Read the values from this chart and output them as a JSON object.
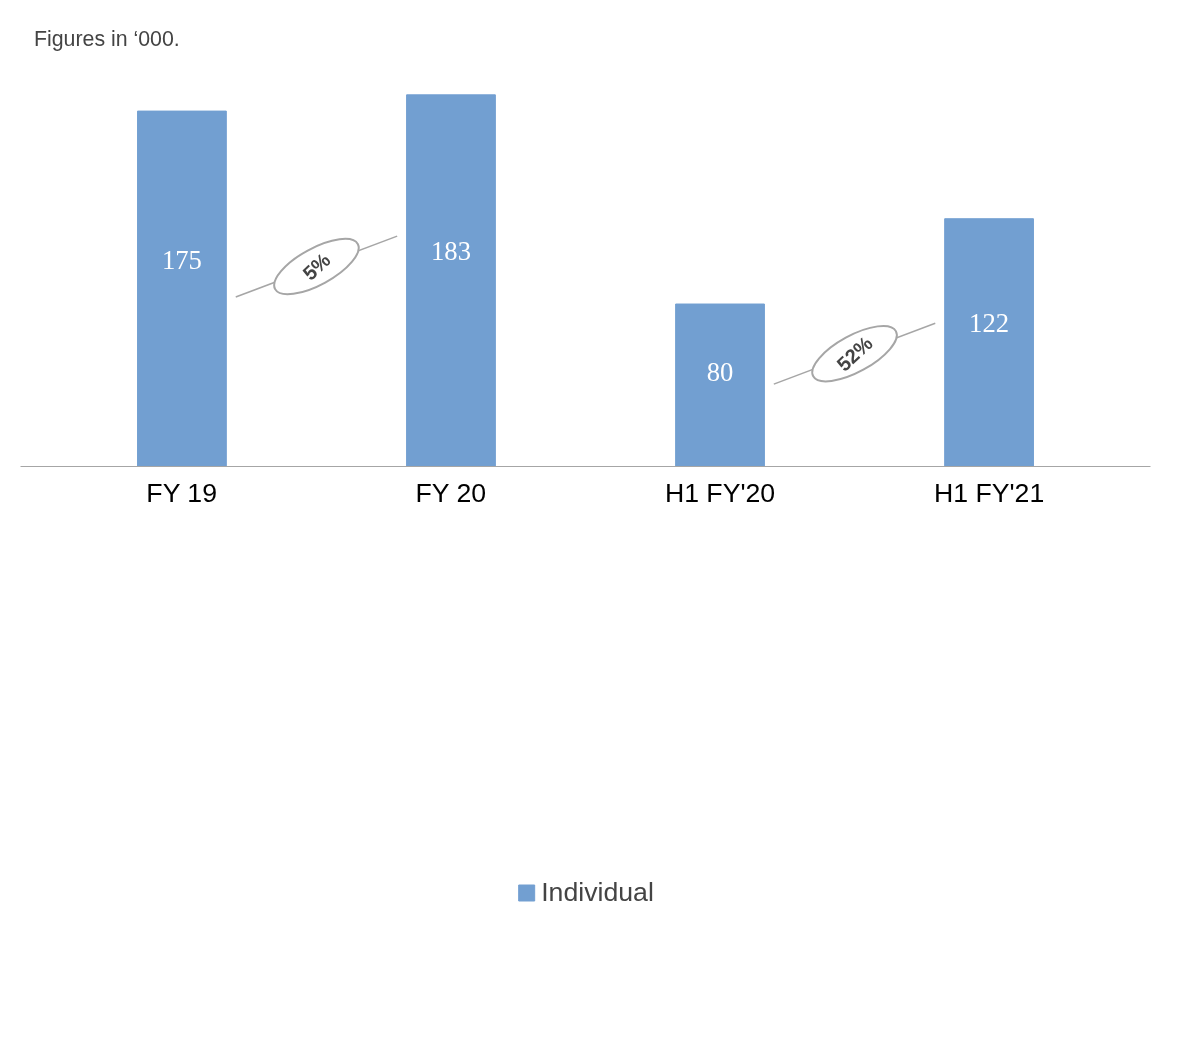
{
  "chart_data": {
    "type": "bar",
    "categories": [
      "FY 19",
      "FY 20",
      "H1 FY'20",
      "H1 FY'21"
    ],
    "series": [
      {
        "name": "Individual",
        "color": "#729fd1",
        "values": [
          175,
          183,
          80,
          122
        ]
      }
    ],
    "data_labels": true,
    "legend": "bottom",
    "grid": false,
    "annotations": [
      "Figures in ‘000.",
      "5%",
      "52%"
    ]
  }
}
